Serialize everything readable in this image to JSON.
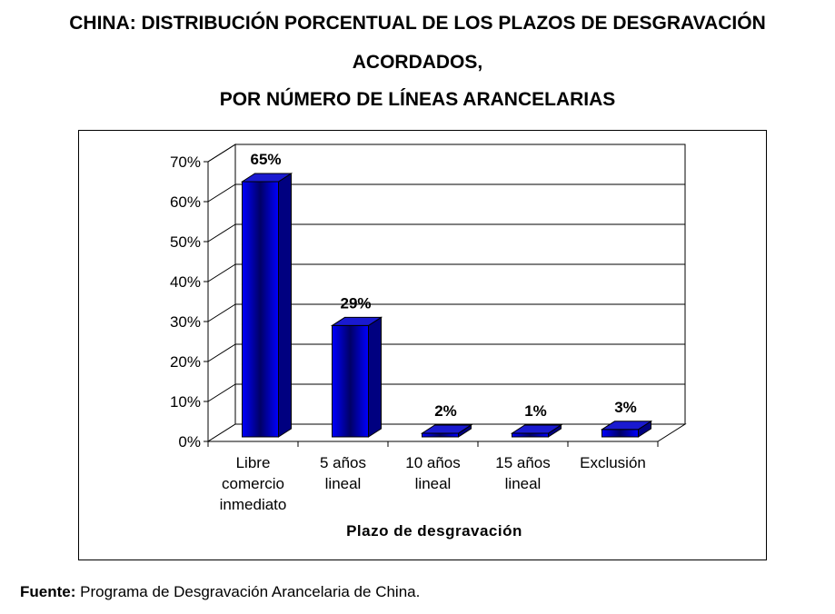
{
  "title_lines": [
    "CHINA: DISTRIBUCIÓN PORCENTUAL DE LOS PLAZOS DE DESGRAVACIÓN",
    "ACORDADOS,",
    "POR NÚMERO DE LÍNEAS ARANCELARIAS"
  ],
  "source": {
    "label": "Fuente:",
    "text": "Programa de Desgravación Arancelaria de China."
  },
  "chart_data": {
    "type": "bar",
    "title": "CHINA: DISTRIBUCIÓN PORCENTUAL DE LOS PLAZOS DE DESGRAVACIÓN ACORDADOS, POR NÚMERO DE LÍNEAS ARANCELARIAS",
    "categories": [
      [
        "Libre",
        "comercio",
        "inmediato"
      ],
      [
        "5 años",
        "lineal"
      ],
      [
        "10 años",
        "lineal"
      ],
      [
        "15 años",
        "lineal"
      ],
      [
        "Exclusión"
      ]
    ],
    "values": [
      65,
      29,
      2,
      1,
      3
    ],
    "data_labels": [
      "65%",
      "29%",
      "2%",
      "1%",
      "3%"
    ],
    "xlabel": "Plazo de desgravación",
    "ylabel": "",
    "ylim": [
      0,
      70
    ],
    "yticks": [
      0,
      10,
      20,
      30,
      40,
      50,
      60,
      70
    ],
    "ytick_labels": [
      "0%",
      "10%",
      "20%",
      "30%",
      "40%",
      "50%",
      "60%",
      "70%"
    ],
    "grid": true,
    "colors": {
      "bar_front": "#0000ff",
      "bar_dark": "#000066",
      "bar_top": "#1a1ad0",
      "bar_side": "#000080"
    }
  }
}
